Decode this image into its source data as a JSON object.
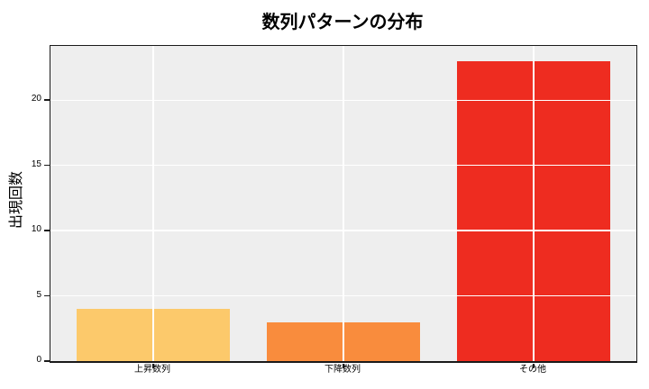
{
  "figure": {
    "background": "#FFFFFF"
  },
  "chart_data": {
    "type": "bar",
    "title": "数列パターンの分布",
    "categories": [
      "上昇数列",
      "下降数列",
      "その他"
    ],
    "values": [
      4,
      3,
      23
    ],
    "bar_colors": [
      "#FCC96B",
      "#F98C3D",
      "#EE2C20"
    ],
    "xlabel": "",
    "ylabel": "出現回数",
    "ylim": [
      0,
      24.15
    ],
    "yticks": [
      0,
      5,
      10,
      15,
      20
    ],
    "grid": true,
    "grid_color": "#FFFFFF",
    "plot_background": "#EEEEEE",
    "legend_position": "none"
  }
}
